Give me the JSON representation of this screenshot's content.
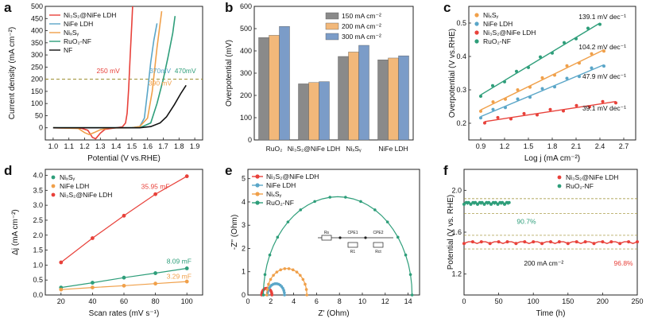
{
  "colors": {
    "red": "#e8413a",
    "blue": "#5aa6c8",
    "orange": "#f0a04a",
    "green": "#2e9e7a",
    "black": "#111111",
    "gray": "#8c8c8c",
    "bar1": "#8a8a8a",
    "bar2": "#f2b87a",
    "bar3": "#7b9cc8",
    "threshold": "#9a8b2a"
  },
  "chart_data": [
    {
      "panel": "a",
      "type": "line",
      "xlabel": "Potential (V vs.RHE)",
      "ylabel": "Current density (mA cm⁻²)",
      "xlim": [
        1.0,
        1.9
      ],
      "ylim": [
        -50,
        500
      ],
      "xticks": [
        "1.0",
        "1.1",
        "1.2",
        "1.3",
        "1.4",
        "1.5",
        "1.6",
        "1.7",
        "1.8",
        "1.9"
      ],
      "yticks": [
        "0",
        "50",
        "100",
        "150",
        "200",
        "250",
        "300",
        "350",
        "400",
        "450",
        "500"
      ],
      "threshold": 200,
      "legend": [
        "Ni₃S₂@NiFe LDH",
        "NiFe LDH",
        "NiₓSᵧ",
        "RuO₂-NF",
        "NF"
      ],
      "annotations": [
        "250 mV",
        "370mV",
        "390 mV",
        "470mV"
      ],
      "series": [
        {
          "name": "Ni3S2@NiFe LDH",
          "color": "red",
          "points": [
            [
              1.0,
              0
            ],
            [
              1.18,
              -2
            ],
            [
              1.22,
              -10
            ],
            [
              1.25,
              -40
            ],
            [
              1.27,
              -45
            ],
            [
              1.3,
              -22
            ],
            [
              1.33,
              -6
            ],
            [
              1.4,
              0
            ],
            [
              1.44,
              4
            ],
            [
              1.46,
              20
            ],
            [
              1.47,
              60
            ],
            [
              1.48,
              160
            ],
            [
              1.49,
              300
            ],
            [
              1.5,
              430
            ],
            [
              1.505,
              500
            ]
          ]
        },
        {
          "name": "NiFe LDH",
          "color": "blue",
          "points": [
            [
              1.0,
              0
            ],
            [
              1.5,
              0
            ],
            [
              1.55,
              5
            ],
            [
              1.58,
              40
            ],
            [
              1.6,
              150
            ],
            [
              1.62,
              270
            ],
            [
              1.64,
              360
            ],
            [
              1.66,
              430
            ]
          ]
        },
        {
          "name": "NixSy",
          "color": "orange",
          "points": [
            [
              1.0,
              0
            ],
            [
              1.16,
              -3
            ],
            [
              1.2,
              -20
            ],
            [
              1.23,
              -28
            ],
            [
              1.26,
              -20
            ],
            [
              1.3,
              -8
            ],
            [
              1.35,
              -1
            ],
            [
              1.5,
              0
            ],
            [
              1.55,
              5
            ],
            [
              1.6,
              40
            ],
            [
              1.63,
              150
            ],
            [
              1.66,
              330
            ],
            [
              1.69,
              480
            ]
          ]
        },
        {
          "name": "RuO2-NF",
          "color": "green",
          "points": [
            [
              1.0,
              0
            ],
            [
              1.55,
              0
            ],
            [
              1.62,
              20
            ],
            [
              1.66,
              100
            ],
            [
              1.7,
              200
            ],
            [
              1.73,
              290
            ],
            [
              1.76,
              390
            ],
            [
              1.775,
              460
            ]
          ]
        },
        {
          "name": "NF",
          "color": "black",
          "points": [
            [
              1.0,
              0
            ],
            [
              1.55,
              0
            ],
            [
              1.62,
              5
            ],
            [
              1.68,
              20
            ],
            [
              1.72,
              45
            ],
            [
              1.77,
              95
            ],
            [
              1.81,
              140
            ],
            [
              1.845,
              175
            ]
          ]
        }
      ]
    },
    {
      "panel": "b",
      "type": "bar",
      "ylabel": "Overpotential (mV)",
      "ylim": [
        0,
        600
      ],
      "yticks": [
        "0",
        "100",
        "200",
        "300",
        "400",
        "500",
        "600"
      ],
      "categories": [
        "RuO₂",
        "Ni₃S₂@NiFe LDH",
        "NiₓSᵧ",
        "NiFe LDH"
      ],
      "series": [
        {
          "name": "150 mA cm⁻²",
          "values": [
            460,
            252,
            375,
            360
          ]
        },
        {
          "name": "200 mA cm⁻²",
          "values": [
            470,
            258,
            395,
            368
          ]
        },
        {
          "name": "300 mA cm⁻²",
          "values": [
            510,
            262,
            425,
            378
          ]
        }
      ]
    },
    {
      "panel": "c",
      "type": "scatter",
      "xlabel": "Log j (mA cm⁻²)",
      "ylabel": "Overpotential (V vs.RHE)",
      "xlim": [
        0.75,
        2.85
      ],
      "ylim": [
        0.15,
        0.55
      ],
      "xticks": [
        "0.9",
        "1.2",
        "1.5",
        "1.8",
        "2.1",
        "2.4",
        "2.7"
      ],
      "yticks": [
        "0.2",
        "0.3",
        "0.4",
        "0.5"
      ],
      "legend": [
        "NiₓSᵧ",
        "NiFe LDH",
        "Ni₃S₂@NiFe LDH",
        "RuO₂-NF"
      ],
      "annotations": [
        "139.1 mV dec⁻¹",
        "104.2 mV dec⁻¹",
        "47.9 mV dec⁻¹",
        "39.1 mV dec⁻¹"
      ],
      "series": [
        {
          "name": "NixSy",
          "color": "orange",
          "x0": 0.9,
          "y0": 0.24,
          "x1": 2.45,
          "y1": 0.42
        },
        {
          "name": "NiFe LDH",
          "color": "blue",
          "x0": 0.9,
          "y0": 0.22,
          "x1": 2.45,
          "y1": 0.375
        },
        {
          "name": "Ni3S2@NiFe LDH",
          "color": "red",
          "x0": 0.95,
          "y0": 0.205,
          "x1": 2.6,
          "y1": 0.265
        },
        {
          "name": "RuO2-NF",
          "color": "green",
          "x0": 0.9,
          "y0": 0.285,
          "x1": 2.4,
          "y1": 0.5
        }
      ]
    },
    {
      "panel": "d",
      "type": "scatter",
      "xlabel": "Scan rates (mV s⁻¹)",
      "ylabel": "Δj (mA cm⁻²)",
      "xlim": [
        10,
        110
      ],
      "ylim": [
        0,
        4.0
      ],
      "xticks": [
        "20",
        "40",
        "60",
        "80",
        "100"
      ],
      "yticks": [
        "0.0",
        "0.5",
        "1.0",
        "1.5",
        "2.0",
        "2.5",
        "3.0",
        "3.5",
        "4.0"
      ],
      "x": [
        20,
        40,
        60,
        80,
        100
      ],
      "legend": [
        "NiₓSᵧ",
        "NiFe LDH",
        "Ni₃S₂@NiFe LDH"
      ],
      "annotations": [
        "35.95 mF",
        "8.09 mF",
        "3.29 mF"
      ],
      "series": [
        {
          "name": "NixSy",
          "color": "green",
          "values": [
            0.25,
            0.41,
            0.58,
            0.73,
            0.89
          ]
        },
        {
          "name": "NiFe LDH",
          "color": "orange",
          "values": [
            0.18,
            0.25,
            0.31,
            0.38,
            0.45
          ]
        },
        {
          "name": "Ni3S2@NiFe LDH",
          "color": "red",
          "values": [
            1.09,
            1.9,
            2.65,
            3.37,
            3.97
          ]
        }
      ]
    },
    {
      "panel": "e",
      "type": "line",
      "xlabel": "Z' (Ohm)",
      "ylabel": "-Z'' (Ohm)",
      "xlim": [
        0,
        15
      ],
      "ylim": [
        0,
        5
      ],
      "xticks": [
        "0",
        "2",
        "4",
        "6",
        "8",
        "10",
        "12",
        "14"
      ],
      "yticks": [
        "0",
        "1",
        "2",
        "3",
        "4",
        "5"
      ],
      "legend": [
        "Ni₃S₂@NiFe LDH",
        "NiFe LDH",
        "NiₓSᵧ",
        "RuO₂-NF"
      ],
      "circuit_labels": [
        "Rs",
        "CPE1",
        "R1",
        "CPE2",
        "Rct"
      ],
      "series": [
        {
          "name": "Ni3S2@NiFe LDH",
          "color": "red",
          "cx": 1.65,
          "r": 0.45
        },
        {
          "name": "NiFe LDH",
          "color": "blue",
          "cx": 2.45,
          "r": 0.75
        },
        {
          "name": "NixSy",
          "color": "orange",
          "cx": 3.4,
          "r": 1.75
        },
        {
          "name": "RuO2-NF",
          "color": "green",
          "cx": 7.85,
          "r": 6.5
        }
      ]
    },
    {
      "panel": "f",
      "type": "line",
      "xlabel": "Time (h)",
      "ylabel": "Potential (V vs. RHE)",
      "xlim": [
        0,
        250
      ],
      "ylim": [
        1.0,
        2.2
      ],
      "xticks": [
        "0",
        "50",
        "100",
        "150",
        "200",
        "250"
      ],
      "yticks": [
        "1.2",
        "1.6",
        "2.0"
      ],
      "legend": [
        "Ni₃S₂@NiFe LDH",
        "RuO₂-NF"
      ],
      "annotations": [
        "90.7%",
        "200 mA cm⁻²",
        "96.8%"
      ],
      "series": [
        {
          "name": "Ni3S2@NiFe LDH",
          "color": "red",
          "x": [
            0,
            250
          ],
          "level": 1.5
        },
        {
          "name": "RuO2-NF",
          "color": "green",
          "x": [
            0,
            65
          ],
          "level": 1.875
        }
      ]
    }
  ],
  "panel_labels": [
    "a",
    "b",
    "c",
    "d",
    "e",
    "f"
  ]
}
